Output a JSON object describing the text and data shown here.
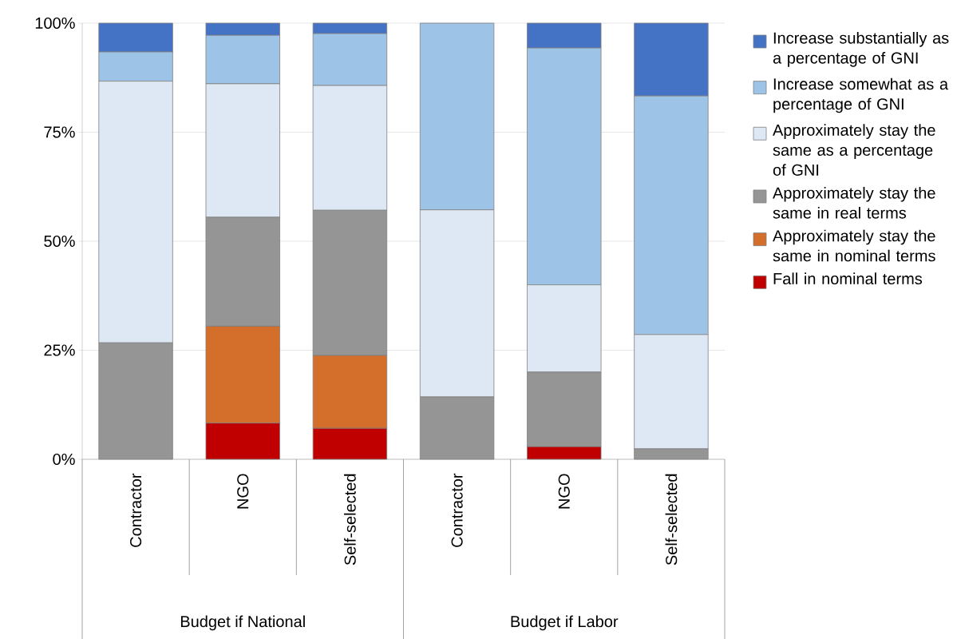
{
  "chart_data": {
    "type": "bar",
    "stacked": true,
    "categories": [
      "Contractor",
      "NGO",
      "Self-selected",
      "Contractor",
      "NGO",
      "Self-selected"
    ],
    "series": [
      {
        "name": "Fall in nominal terms",
        "color": "#c00000",
        "values": [
          0,
          8.3,
          7.1,
          0,
          2.9,
          0
        ]
      },
      {
        "name": "Approximately stay the same in nominal terms",
        "color": "#d36e2b",
        "values": [
          0,
          22.2,
          16.7,
          0,
          0,
          0
        ]
      },
      {
        "name": "Approximately stay the same in real terms",
        "color": "#959595",
        "values": [
          26.7,
          25.0,
          33.3,
          14.3,
          17.1,
          2.4
        ]
      },
      {
        "name": "Approximately stay the same as a percentage of GNI",
        "color": "#dde8f4",
        "values": [
          60.0,
          30.6,
          28.6,
          42.9,
          20.0,
          26.2
        ]
      },
      {
        "name": "Increase somewhat as a percentage of GNI",
        "color": "#9dc3e6",
        "values": [
          6.7,
          11.1,
          11.9,
          42.8,
          54.3,
          54.7
        ]
      },
      {
        "name": "Increase substantially as a percentage of GNI",
        "color": "#4472c4",
        "values": [
          6.6,
          2.8,
          2.4,
          0,
          5.7,
          16.7
        ]
      }
    ],
    "annotations": [
      "Budget if National",
      "Budget if Labor"
    ],
    "ylim": [
      0,
      100
    ],
    "yticks": [
      {
        "value": 0,
        "label": "0%"
      },
      {
        "value": 25,
        "label": "25%"
      },
      {
        "value": 50,
        "label": "50%"
      },
      {
        "value": 75,
        "label": "75%"
      },
      {
        "value": 100,
        "label": "100%"
      }
    ],
    "grid": "y",
    "legend": "right"
  }
}
